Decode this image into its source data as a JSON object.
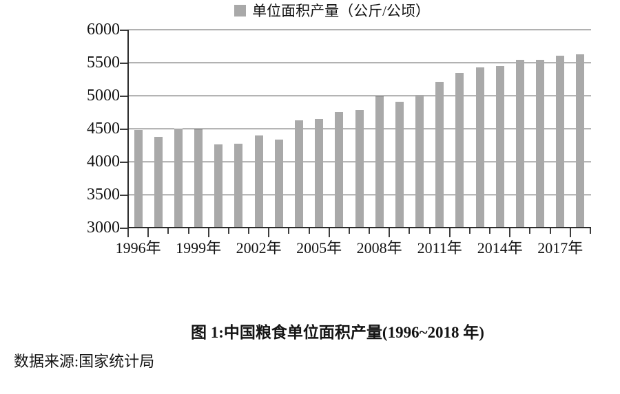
{
  "colors": {
    "bar": "#a9a9a9",
    "grid": "#3c3c3c",
    "axis": "#2b2b2b",
    "text": "#141414",
    "background": "#ffffff"
  },
  "chart_data": {
    "type": "bar",
    "title": "图 1:中国粮食单位面积产量(1996~2018 年)",
    "legend": "单位面积产量（公斤/公顷）",
    "source_note": "数据来源:国家统计局",
    "categories": [
      1996,
      1997,
      1998,
      1999,
      2000,
      2001,
      2002,
      2003,
      2004,
      2005,
      2006,
      2007,
      2008,
      2009,
      2010,
      2011,
      2012,
      2013,
      2014,
      2015,
      2016,
      2017,
      2018
    ],
    "values": [
      4483,
      4377,
      4502,
      4493,
      4261,
      4267,
      4399,
      4333,
      4621,
      4642,
      4752,
      4779,
      4986,
      4909,
      5008,
      5213,
      5343,
      5424,
      5445,
      5546,
      5537,
      5607,
      5621
    ],
    "series_name": "单位面积产量（公斤/公顷）",
    "xlabel": "",
    "ylabel": "",
    "x_tick_labels": [
      "1996年",
      "1999年",
      "2002年",
      "2005年",
      "2008年",
      "2011年",
      "2014年",
      "2017年"
    ],
    "x_label_interval": 3,
    "ylim": [
      3000,
      6000
    ],
    "ytick_step": 500,
    "yticks": [
      3000,
      3500,
      4000,
      4500,
      5000,
      5500,
      6000
    ],
    "grid": true,
    "legend_position": "bottom"
  }
}
